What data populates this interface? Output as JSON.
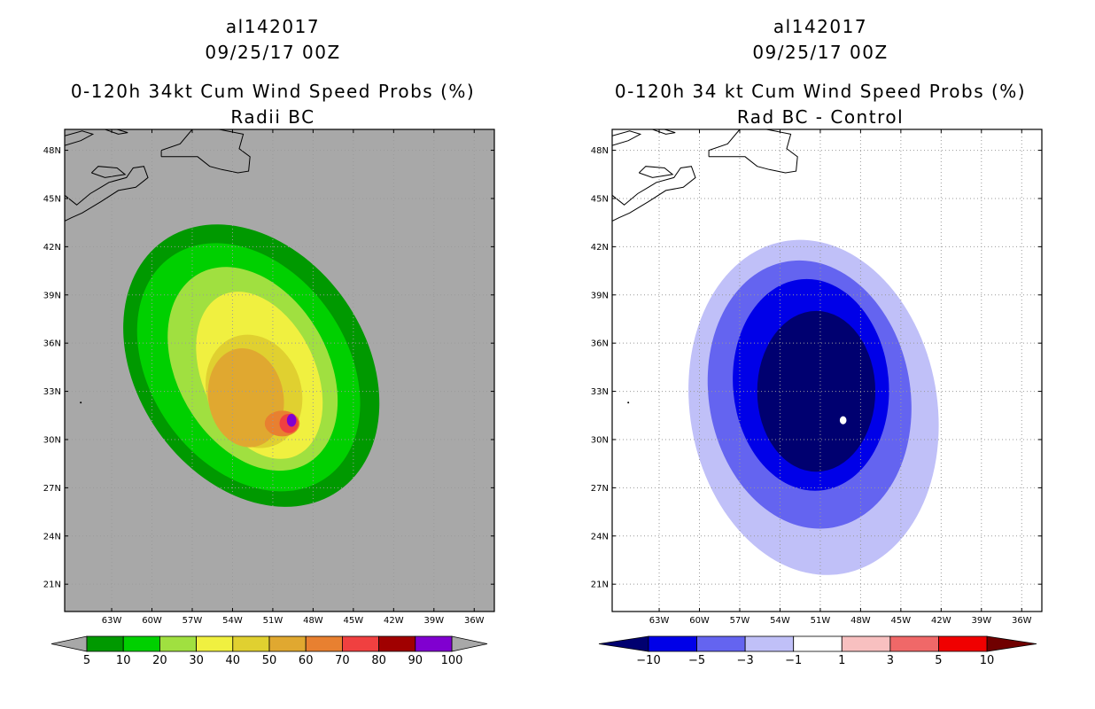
{
  "chart_data": [
    {
      "type": "heatmap",
      "id": "left",
      "storm_id": "al142017",
      "datetime": "09/25/17 00Z",
      "title": "0-120h 34kt Cum Wind Speed Probs (%)",
      "subtitle": "Radii BC",
      "units": "%",
      "x_tick_labels": [
        "63W",
        "60W",
        "57W",
        "54W",
        "51W",
        "48W",
        "45W",
        "42W",
        "39W",
        "36W"
      ],
      "y_tick_labels": [
        "48N",
        "45N",
        "42N",
        "39N",
        "36N",
        "33N",
        "30N",
        "27N",
        "24N",
        "21N"
      ],
      "xlim_deg_west": [
        66.5,
        34.5
      ],
      "ylim_deg_north": [
        19.3,
        49.3
      ],
      "colorbar": {
        "labels": [
          "5",
          "10",
          "20",
          "30",
          "40",
          "50",
          "60",
          "70",
          "80",
          "90",
          "100"
        ],
        "colors": [
          "#009900",
          "#00d000",
          "#a0e040",
          "#f0f040",
          "#e0d030",
          "#e0a830",
          "#e88030",
          "#f04040",
          "#a00000",
          "#8000d0"
        ],
        "extend_low": "#a8a8a8",
        "extend_high": "#a8a8a8"
      },
      "contours": [
        {
          "level": 5,
          "color": "#009900",
          "cx": 52.6,
          "cy": 34.6,
          "rx": 8.5,
          "ry": 9.5,
          "rot": -35
        },
        {
          "level": 10,
          "color": "#00d000",
          "cx": 52.8,
          "cy": 34.5,
          "rx": 7.3,
          "ry": 8.4,
          "rot": -35
        },
        {
          "level": 20,
          "color": "#a0e040",
          "cx": 52.5,
          "cy": 34.4,
          "rx": 5.6,
          "ry": 6.8,
          "rot": -30
        },
        {
          "level": 30,
          "color": "#f0f040",
          "cx": 52.0,
          "cy": 34.0,
          "rx": 4.2,
          "ry": 5.5,
          "rot": -25
        },
        {
          "level": 40,
          "color": "#e0d030",
          "cx": 52.4,
          "cy": 33.0,
          "rx": 3.5,
          "ry": 3.6,
          "rot": -20
        },
        {
          "level": 50,
          "color": "#e0a830",
          "cx": 53.0,
          "cy": 32.6,
          "rx": 2.8,
          "ry": 3.1,
          "rot": -10
        },
        {
          "level": 60,
          "color": "#e88030",
          "cx": 50.3,
          "cy": 31.0,
          "rx": 1.3,
          "ry": 0.8,
          "rot": 0
        },
        {
          "level": 70,
          "color": "#f04040",
          "cx": 49.8,
          "cy": 31.0,
          "rx": 0.7,
          "ry": 0.6,
          "rot": 0
        },
        {
          "level": 90,
          "color": "#8000d0",
          "cx": 49.6,
          "cy": 31.2,
          "rx": 0.35,
          "ry": 0.4,
          "rot": 0
        }
      ]
    },
    {
      "type": "heatmap",
      "id": "right",
      "storm_id": "al142017",
      "datetime": "09/25/17 00Z",
      "title": "0-120h 34 kt Cum Wind Speed Probs (%)",
      "subtitle": "Rad BC - Control",
      "units": "%",
      "x_tick_labels": [
        "63W",
        "60W",
        "57W",
        "54W",
        "51W",
        "48W",
        "45W",
        "42W",
        "39W",
        "36W"
      ],
      "y_tick_labels": [
        "48N",
        "45N",
        "42N",
        "39N",
        "36N",
        "33N",
        "30N",
        "27N",
        "24N",
        "21N"
      ],
      "xlim_deg_west": [
        66.5,
        34.5
      ],
      "ylim_deg_north": [
        19.3,
        49.3
      ],
      "colorbar": {
        "labels": [
          "-10",
          "-5",
          "-3",
          "-1",
          "1",
          "3",
          "5",
          "10"
        ],
        "colors": [
          "#0000e8",
          "#6464f0",
          "#c0c0f8",
          "#ffffff",
          "#f8c0c0",
          "#f06868",
          "#f00000"
        ],
        "extend_low": "#000070",
        "extend_high": "#700000"
      },
      "contours": [
        {
          "level": -1,
          "color": "#c0c0f8",
          "cx": 51.5,
          "cy": 32.0,
          "rx": 9.2,
          "ry": 10.5,
          "rot": -10
        },
        {
          "level": -3,
          "color": "#6464f0",
          "cx": 51.8,
          "cy": 32.8,
          "rx": 7.5,
          "ry": 8.4,
          "rot": -10
        },
        {
          "level": -5,
          "color": "#0000e8",
          "cx": 51.7,
          "cy": 33.4,
          "rx": 5.8,
          "ry": 6.6,
          "rot": -5
        },
        {
          "level": -10,
          "color": "#000070",
          "cx": 51.3,
          "cy": 33.0,
          "rx": 4.4,
          "ry": 5.0,
          "rot": 0
        },
        {
          "level": 1,
          "color": "#ffffff",
          "cx": 49.3,
          "cy": 31.2,
          "rx": 0.25,
          "ry": 0.25,
          "rot": 0
        }
      ]
    }
  ]
}
